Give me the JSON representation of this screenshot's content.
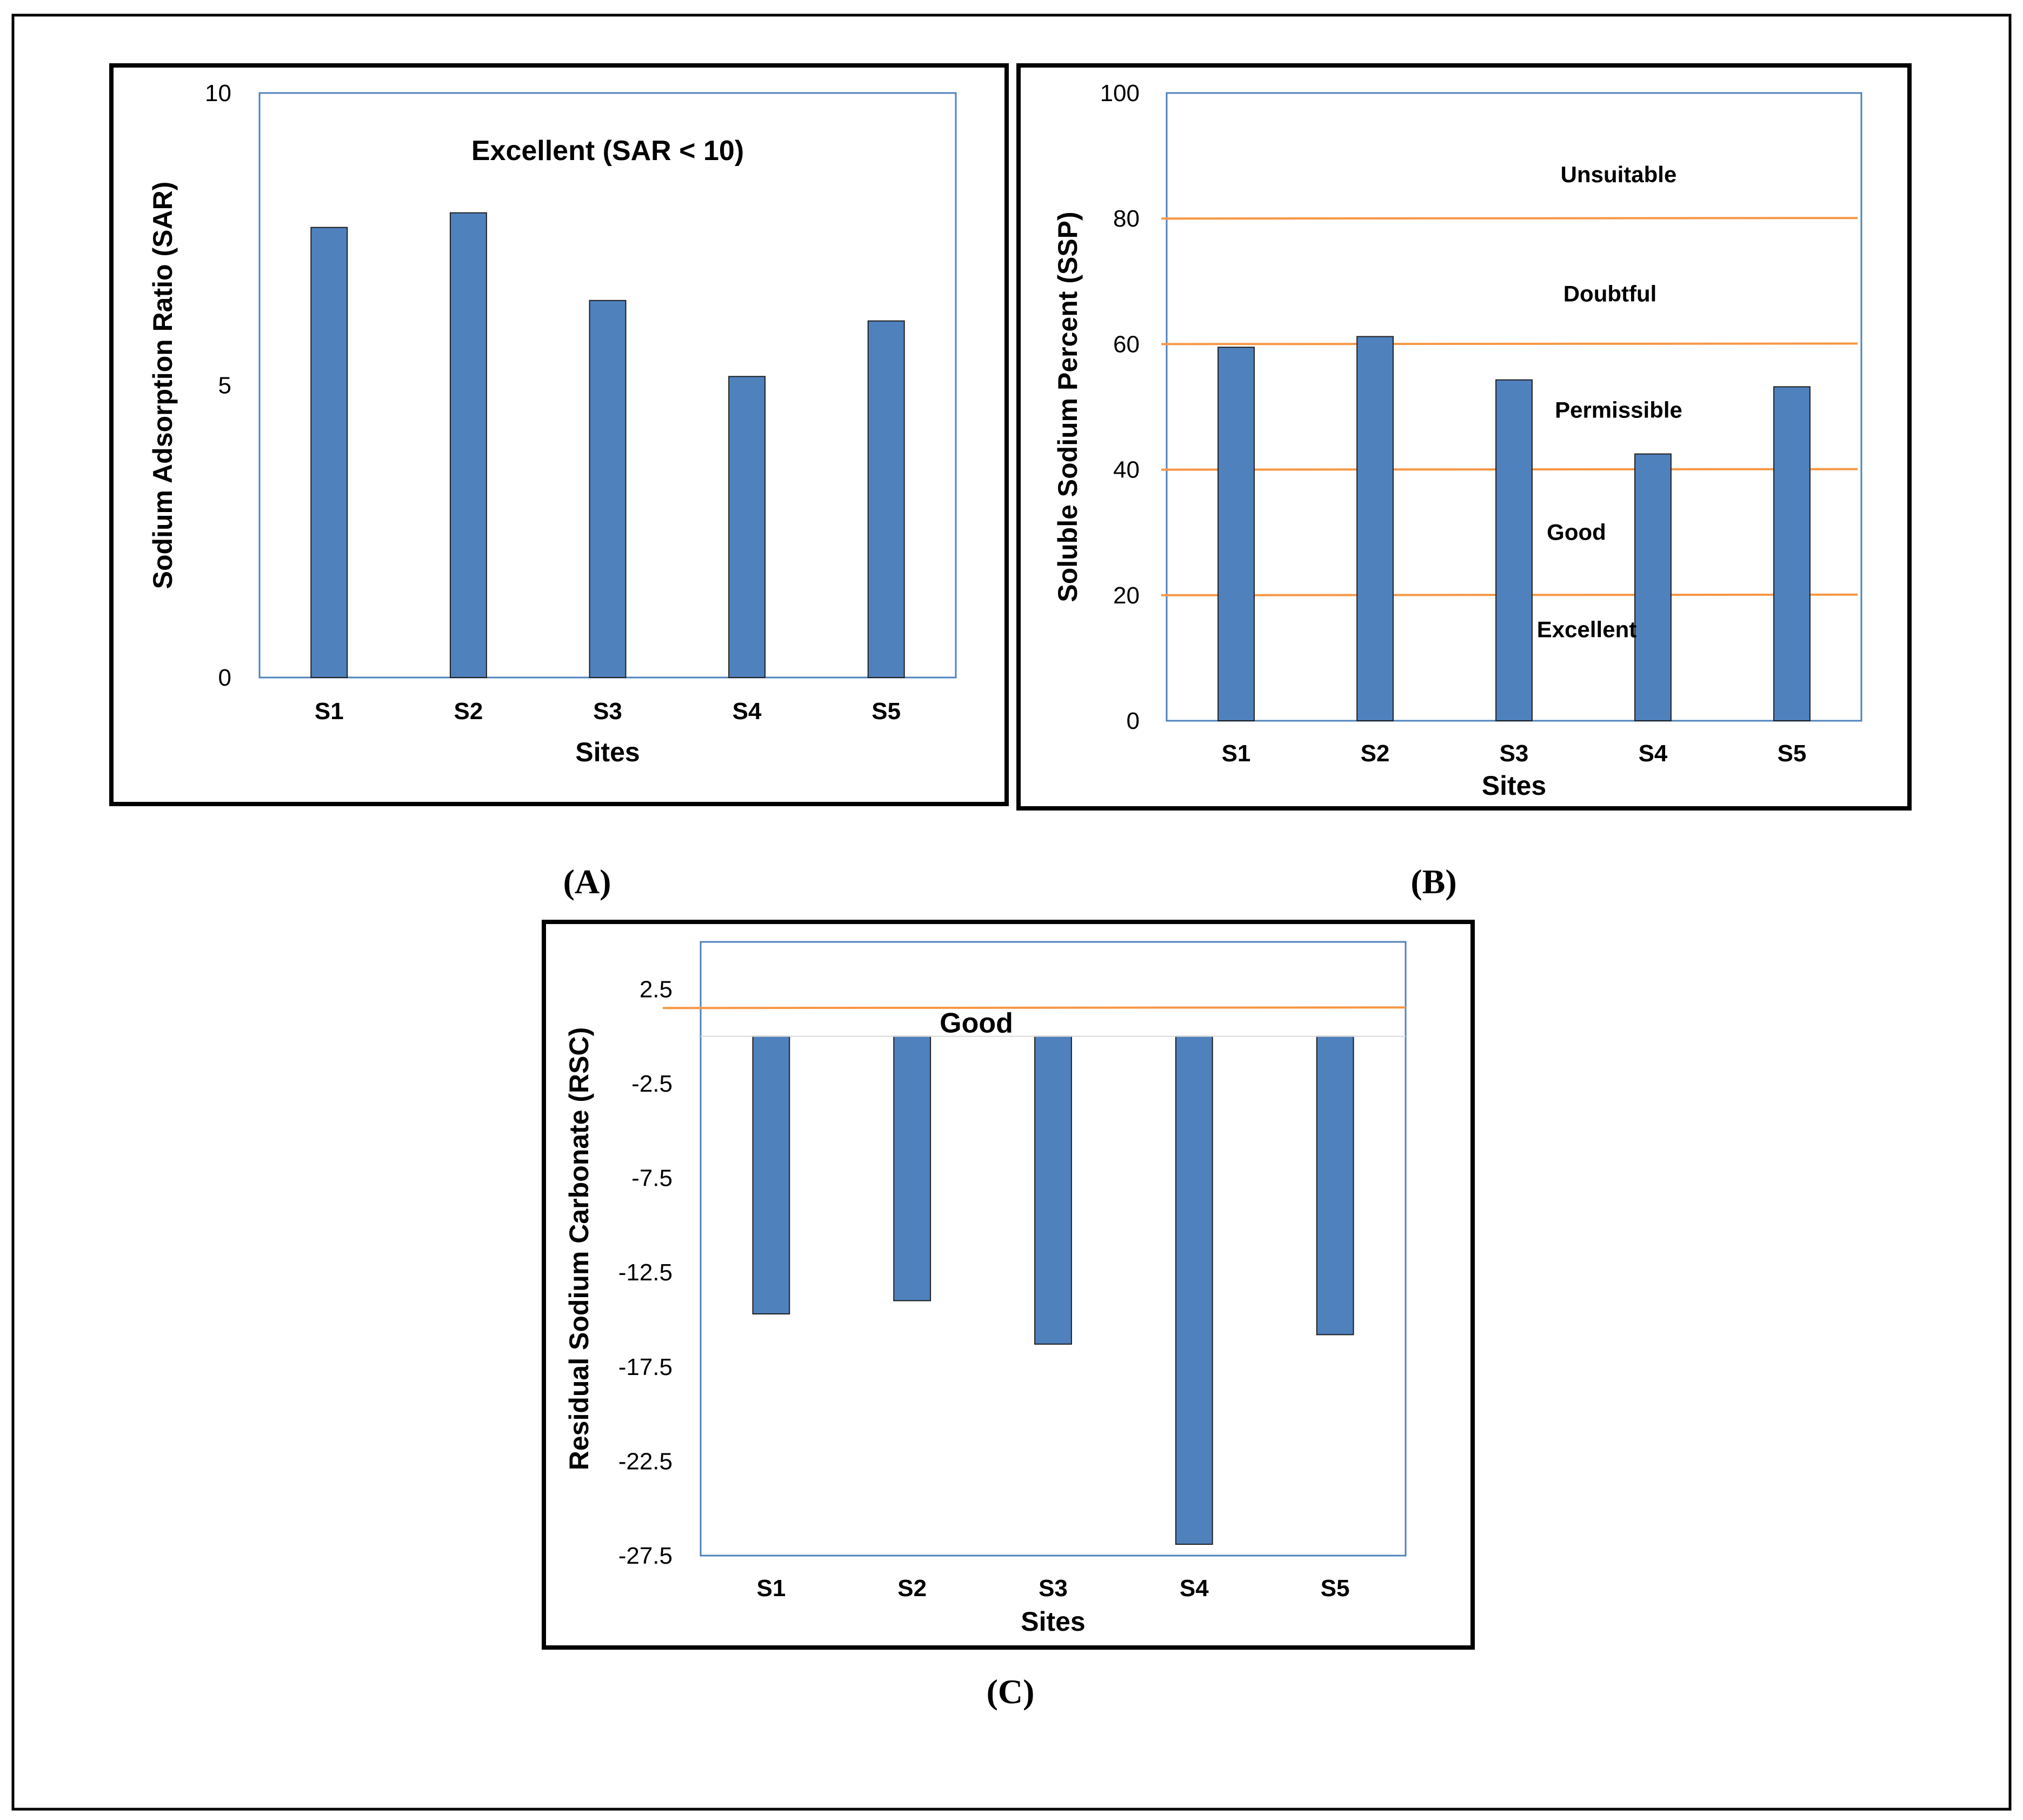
{
  "figure": {
    "panel_labels": [
      "(A)",
      "(B)",
      "(C)"
    ]
  },
  "colors": {
    "bar": "#4F81BD",
    "threshold_line": "#F79646",
    "plot_border": "#4F81BD",
    "frame": "#000000"
  },
  "chart_data": [
    {
      "type": "bar",
      "panel": "A",
      "title": "",
      "annotation": "Excellent (SAR < 10)",
      "categories": [
        "S1",
        "S2",
        "S3",
        "S4",
        "S5"
      ],
      "values": [
        7.7,
        7.95,
        6.45,
        5.15,
        6.1
      ],
      "xlabel": "Sites",
      "ylabel": "Sodium Adsorption Ratio (SAR)",
      "ylim": [
        0,
        10
      ],
      "yticks": [
        0,
        5,
        10
      ],
      "ytick_labels": [
        "0",
        "5",
        "10"
      ],
      "thresholds": [],
      "zones": []
    },
    {
      "type": "bar",
      "panel": "B",
      "title": "",
      "categories": [
        "S1",
        "S2",
        "S3",
        "S4",
        "S5"
      ],
      "values": [
        59.5,
        61.2,
        54.3,
        42.5,
        53.2
      ],
      "xlabel": "Sites",
      "ylabel": "Soluble Sodium Percent (SSP)",
      "ylim": [
        0,
        100
      ],
      "yticks": [
        0,
        20,
        40,
        60,
        80,
        100
      ],
      "ytick_labels": [
        "0",
        "20",
        "40",
        "60",
        "80",
        "100"
      ],
      "thresholds": [
        20,
        40,
        60,
        80
      ],
      "zones": [
        {
          "label": "Unsuitable",
          "value": 87
        },
        {
          "label": "Doubtful",
          "value": 68
        },
        {
          "label": "Permissible",
          "value": 49.5
        },
        {
          "label": "Good",
          "value": 30
        },
        {
          "label": "Excellent",
          "value": 14.5
        }
      ]
    },
    {
      "type": "bar",
      "panel": "C",
      "title": "",
      "categories": [
        "S1",
        "S2",
        "S3",
        "S4",
        "S5"
      ],
      "values": [
        -14.7,
        -14.0,
        -16.3,
        -26.9,
        -15.8
      ],
      "xlabel": "Sites",
      "ylabel": "Residual Sodium Carbonate (RSC)",
      "ylim": [
        -27.5,
        5
      ],
      "yticks": [
        2.5,
        -2.5,
        -7.5,
        -12.5,
        -17.5,
        -22.5,
        -27.5
      ],
      "ytick_labels": [
        "2.5",
        "-2.5",
        "-7.5",
        "-12.5",
        "-17.5",
        "-22.5",
        "-27.5"
      ],
      "thresholds": [
        1.5
      ],
      "zones": [
        {
          "label": "Good",
          "value": 0.6
        }
      ]
    }
  ]
}
